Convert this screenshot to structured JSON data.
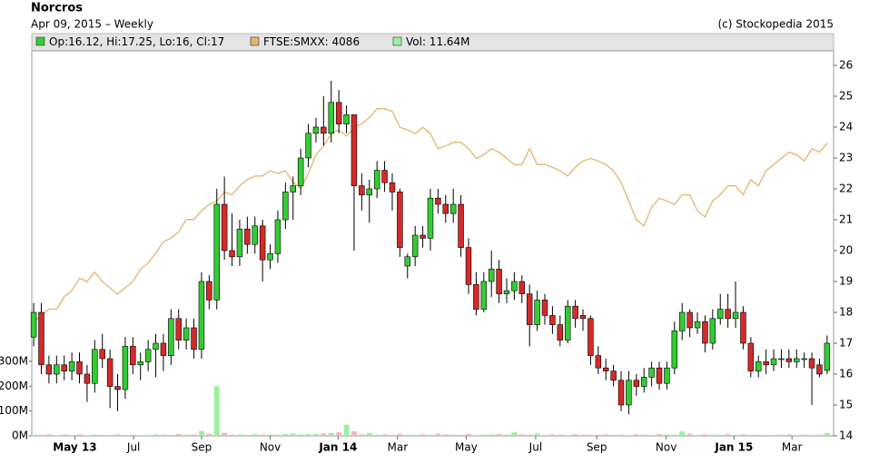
{
  "chart_data": {
    "type": "candlestick",
    "title": "Norcros",
    "subtitle": "Apr 09, 2015 – Weekly",
    "credit": "(c) Stockopedia 2015",
    "xlim": [
      -0.25,
      104.85
    ],
    "xticks": [
      {
        "value": 5.4,
        "label": "May 13"
      },
      {
        "value": 13.1,
        "label": "Jul"
      },
      {
        "value": 22.0,
        "label": "Sep"
      },
      {
        "value": 31.0,
        "label": "Nov"
      },
      {
        "value": 39.9,
        "label": "Jan 14"
      },
      {
        "value": 47.7,
        "label": "Mar"
      },
      {
        "value": 56.7,
        "label": "May"
      },
      {
        "value": 65.8,
        "label": "Jul"
      },
      {
        "value": 73.8,
        "label": "Sep"
      },
      {
        "value": 82.9,
        "label": "Nov"
      },
      {
        "value": 91.8,
        "label": "Jan 15"
      },
      {
        "value": 99.4,
        "label": "Mar"
      }
    ],
    "ylim": [
      14,
      26.47
    ],
    "yticks": [
      14,
      15,
      16,
      17,
      18,
      19,
      20,
      21,
      22,
      23,
      24,
      25,
      26
    ],
    "y2lim": [
      2436,
      4606
    ],
    "y3lim": [
      0,
      1549
    ],
    "y3ticks": [
      {
        "value": 0,
        "label": "0M"
      },
      {
        "value": 100,
        "label": "100M"
      },
      {
        "value": 200,
        "label": "200M"
      },
      {
        "value": 300,
        "label": "300M"
      }
    ],
    "series": [
      {
        "name": "Op:16.12, Hi:17.25, Lo:16, Cl:17",
        "type": "candlestick",
        "up_color": "#33cc33",
        "down_color": "#d42a2a",
        "ohlc": [
          [
            17.2,
            18.3,
            16.9,
            18.0
          ],
          [
            18.0,
            18.3,
            16.0,
            16.3
          ],
          [
            16.3,
            16.6,
            15.7,
            16.0
          ],
          [
            16.0,
            16.6,
            15.7,
            16.3
          ],
          [
            16.3,
            16.6,
            15.8,
            16.1
          ],
          [
            16.1,
            16.7,
            15.8,
            16.4
          ],
          [
            16.4,
            16.7,
            15.7,
            16.0
          ],
          [
            16.0,
            16.3,
            15.1,
            15.7
          ],
          [
            15.7,
            17.1,
            15.4,
            16.8
          ],
          [
            16.8,
            17.3,
            16.2,
            16.5
          ],
          [
            16.5,
            16.8,
            14.9,
            15.6
          ],
          [
            15.6,
            16.0,
            14.8,
            15.5
          ],
          [
            15.5,
            17.2,
            15.2,
            16.9
          ],
          [
            16.9,
            17.2,
            16.0,
            16.3
          ],
          [
            16.3,
            16.7,
            15.8,
            16.4
          ],
          [
            16.4,
            17.1,
            16.1,
            16.8
          ],
          [
            16.8,
            17.3,
            15.9,
            17.0
          ],
          [
            17.0,
            17.3,
            16.1,
            16.6
          ],
          [
            16.6,
            18.1,
            16.3,
            17.8
          ],
          [
            17.8,
            18.1,
            16.8,
            17.1
          ],
          [
            17.1,
            17.8,
            16.8,
            17.5
          ],
          [
            17.5,
            17.8,
            16.5,
            16.8
          ],
          [
            16.8,
            19.3,
            16.5,
            19.0
          ],
          [
            19.0,
            19.2,
            18.1,
            18.4
          ],
          [
            18.4,
            22.0,
            18.1,
            21.5
          ],
          [
            21.5,
            22.4,
            19.7,
            20.0
          ],
          [
            20.0,
            21.2,
            19.5,
            19.8
          ],
          [
            19.8,
            21.0,
            19.5,
            20.7
          ],
          [
            20.7,
            21.1,
            19.9,
            20.2
          ],
          [
            20.2,
            21.1,
            19.9,
            20.8
          ],
          [
            20.8,
            21.0,
            19.0,
            19.7
          ],
          [
            19.7,
            20.2,
            19.4,
            19.9
          ],
          [
            19.9,
            21.3,
            19.6,
            21.0
          ],
          [
            21.0,
            22.2,
            20.7,
            21.9
          ],
          [
            21.9,
            22.4,
            21.0,
            22.1
          ],
          [
            22.1,
            23.3,
            21.8,
            23.0
          ],
          [
            23.0,
            24.1,
            22.7,
            23.8
          ],
          [
            23.8,
            24.3,
            23.5,
            24.0
          ],
          [
            24.0,
            25.0,
            23.4,
            23.8
          ],
          [
            23.8,
            25.5,
            23.5,
            24.8
          ],
          [
            24.8,
            25.2,
            23.8,
            24.1
          ],
          [
            24.1,
            24.7,
            23.8,
            24.4
          ],
          [
            24.4,
            24.4,
            20.0,
            22.1
          ],
          [
            22.1,
            22.5,
            21.3,
            21.8
          ],
          [
            21.8,
            22.3,
            20.9,
            22.0
          ],
          [
            22.0,
            22.9,
            21.7,
            22.6
          ],
          [
            22.6,
            22.9,
            21.9,
            22.2
          ],
          [
            22.2,
            22.5,
            21.3,
            21.9
          ],
          [
            21.9,
            22.0,
            19.8,
            20.1
          ],
          [
            19.5,
            19.9,
            19.1,
            19.8
          ],
          [
            19.8,
            20.8,
            19.5,
            20.5
          ],
          [
            20.5,
            20.8,
            20.1,
            20.4
          ],
          [
            20.4,
            22.0,
            20.0,
            21.7
          ],
          [
            21.7,
            22.0,
            21.2,
            21.5
          ],
          [
            21.5,
            21.8,
            20.9,
            21.2
          ],
          [
            21.2,
            22.0,
            20.9,
            21.5
          ],
          [
            21.5,
            21.8,
            19.8,
            20.1
          ],
          [
            20.1,
            20.4,
            18.6,
            18.9
          ],
          [
            18.9,
            19.3,
            17.9,
            18.1
          ],
          [
            18.1,
            19.3,
            18.0,
            19.0
          ],
          [
            19.0,
            20.0,
            18.5,
            19.4
          ],
          [
            19.4,
            19.7,
            18.3,
            18.6
          ],
          [
            18.6,
            19.1,
            18.3,
            18.7
          ],
          [
            18.7,
            19.3,
            18.4,
            19.0
          ],
          [
            19.0,
            19.2,
            18.3,
            18.6
          ],
          [
            18.6,
            18.9,
            16.9,
            17.6
          ],
          [
            17.6,
            18.7,
            17.4,
            18.4
          ],
          [
            18.4,
            18.6,
            17.6,
            17.9
          ],
          [
            17.9,
            18.2,
            17.3,
            17.6
          ],
          [
            17.6,
            17.9,
            16.9,
            17.1
          ],
          [
            17.1,
            18.4,
            17.0,
            18.2
          ],
          [
            18.2,
            18.4,
            17.5,
            17.8
          ],
          [
            17.9,
            18.1,
            17.4,
            17.8
          ],
          [
            17.8,
            17.9,
            16.3,
            16.6
          ],
          [
            16.6,
            16.9,
            16.0,
            16.2
          ],
          [
            16.2,
            16.5,
            15.8,
            16.1
          ],
          [
            16.1,
            16.3,
            15.6,
            15.8
          ],
          [
            15.8,
            16.1,
            14.8,
            15.0
          ],
          [
            15.0,
            16.1,
            14.7,
            15.8
          ],
          [
            15.8,
            16.0,
            15.3,
            15.6
          ],
          [
            15.6,
            16.2,
            15.4,
            15.9
          ],
          [
            15.9,
            16.4,
            15.6,
            16.2
          ],
          [
            16.2,
            16.4,
            15.5,
            15.7
          ],
          [
            15.7,
            16.4,
            15.5,
            16.2
          ],
          [
            16.2,
            17.7,
            16.0,
            17.4
          ],
          [
            17.4,
            18.3,
            17.1,
            18.0
          ],
          [
            18.0,
            18.1,
            17.2,
            17.5
          ],
          [
            17.5,
            18.0,
            17.3,
            17.7
          ],
          [
            17.7,
            17.9,
            16.7,
            17.0
          ],
          [
            17.0,
            18.1,
            16.8,
            17.8
          ],
          [
            17.8,
            18.6,
            17.6,
            18.1
          ],
          [
            18.1,
            18.6,
            17.5,
            17.8
          ],
          [
            17.8,
            19.0,
            17.5,
            18.0
          ],
          [
            18.0,
            18.2,
            16.8,
            17.0
          ],
          [
            17.0,
            17.2,
            15.9,
            16.1
          ],
          [
            16.1,
            16.6,
            15.9,
            16.4
          ],
          [
            16.4,
            16.8,
            16.0,
            16.3
          ],
          [
            16.3,
            16.8,
            16.1,
            16.5
          ],
          [
            16.5,
            16.8,
            16.2,
            16.5
          ],
          [
            16.5,
            16.8,
            16.2,
            16.4
          ],
          [
            16.4,
            16.8,
            16.2,
            16.5
          ],
          [
            16.5,
            16.7,
            16.2,
            16.5
          ],
          [
            16.5,
            16.7,
            15.0,
            16.2
          ],
          [
            16.3,
            16.5,
            15.9,
            16.0
          ],
          [
            16.12,
            17.25,
            16,
            17
          ]
        ]
      },
      {
        "name": "FTSE:SMXX: 4086",
        "type": "line",
        "axis": "y2",
        "color": "#e3b46e",
        "values": [
          3080,
          3115,
          3150,
          3150,
          3220,
          3255,
          3325,
          3305,
          3360,
          3305,
          3270,
          3235,
          3270,
          3305,
          3375,
          3410,
          3465,
          3530,
          3550,
          3585,
          3655,
          3655,
          3705,
          3740,
          3760,
          3810,
          3795,
          3845,
          3880,
          3900,
          3900,
          3930,
          3915,
          3930,
          3865,
          3830,
          3915,
          4020,
          4070,
          4140,
          4160,
          4125,
          4175,
          4195,
          4230,
          4280,
          4280,
          4265,
          4175,
          4160,
          4140,
          4175,
          4140,
          4055,
          4070,
          4090,
          4090,
          4055,
          4000,
          4020,
          4055,
          4035,
          4000,
          3965,
          3965,
          4055,
          3965,
          3965,
          3950,
          3930,
          3900,
          3950,
          3985,
          4000,
          3985,
          3965,
          3930,
          3865,
          3760,
          3655,
          3620,
          3725,
          3775,
          3760,
          3740,
          3795,
          3795,
          3705,
          3670,
          3760,
          3795,
          3845,
          3845,
          3795,
          3880,
          3845,
          3930,
          3965,
          4000,
          4035,
          4020,
          3985,
          4055,
          4035,
          4086
        ]
      },
      {
        "name": "Vol: 11.64M",
        "type": "bar",
        "axis": "y3",
        "up_color": "#9cf09c",
        "down_color": "#f5b5b5",
        "values": [
          5,
          4,
          6,
          3,
          5,
          4,
          6,
          3,
          5,
          4,
          3,
          6,
          4,
          5,
          3,
          4,
          6,
          5,
          4,
          8,
          5,
          6,
          20,
          8,
          200,
          12,
          5,
          6,
          4,
          7,
          5,
          6,
          5,
          8,
          9,
          6,
          7,
          8,
          10,
          12,
          14,
          45,
          18,
          6,
          12,
          5,
          6,
          4,
          8,
          5,
          4,
          6,
          5,
          9,
          6,
          5,
          4,
          7,
          3,
          5,
          6,
          8,
          5,
          14,
          6,
          5,
          9,
          4,
          6,
          5,
          3,
          7,
          5,
          4,
          5,
          6,
          4,
          5,
          3,
          6,
          5,
          4,
          7,
          6,
          5,
          18,
          9,
          4,
          6,
          5,
          4,
          7,
          5,
          6,
          4,
          5,
          3,
          4,
          5,
          6,
          4,
          5,
          3,
          4,
          11.64
        ]
      }
    ]
  }
}
